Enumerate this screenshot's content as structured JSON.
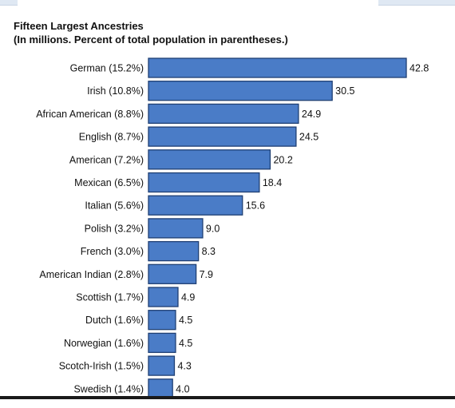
{
  "chart_data": {
    "type": "bar",
    "orientation": "horizontal",
    "title": "Fifteen Largest Ancestries",
    "subtitle": "(In millions.  Percent of total population in parentheses.)",
    "categories": [
      "German (15.2%)",
      "Irish (10.8%)",
      "African American (8.8%)",
      "English (8.7%)",
      "American (7.2%)",
      "Mexican (6.5%)",
      "Italian (5.6%)",
      "Polish (3.2%)",
      "French (3.0%)",
      "American Indian (2.8%)",
      "Scottish (1.7%)",
      "Dutch (1.6%)",
      "Norwegian (1.6%)",
      "Scotch-Irish (1.5%)",
      "Swedish (1.4%)"
    ],
    "values": [
      42.8,
      30.5,
      24.9,
      24.5,
      20.2,
      18.4,
      15.6,
      9.0,
      8.3,
      7.9,
      4.9,
      4.5,
      4.5,
      4.3,
      4.0
    ],
    "value_labels": [
      "42.8",
      "30.5",
      "24.9",
      "24.5",
      "20.2",
      "18.4",
      "15.6",
      "9.0",
      "8.3",
      "7.9",
      "4.9",
      "4.5",
      "4.5",
      "4.3",
      "4.0"
    ],
    "xlim": [
      0,
      42.8
    ],
    "grid": false,
    "bar_color": "#4a7cc7",
    "bar_edge_color": "#1f3f73"
  }
}
